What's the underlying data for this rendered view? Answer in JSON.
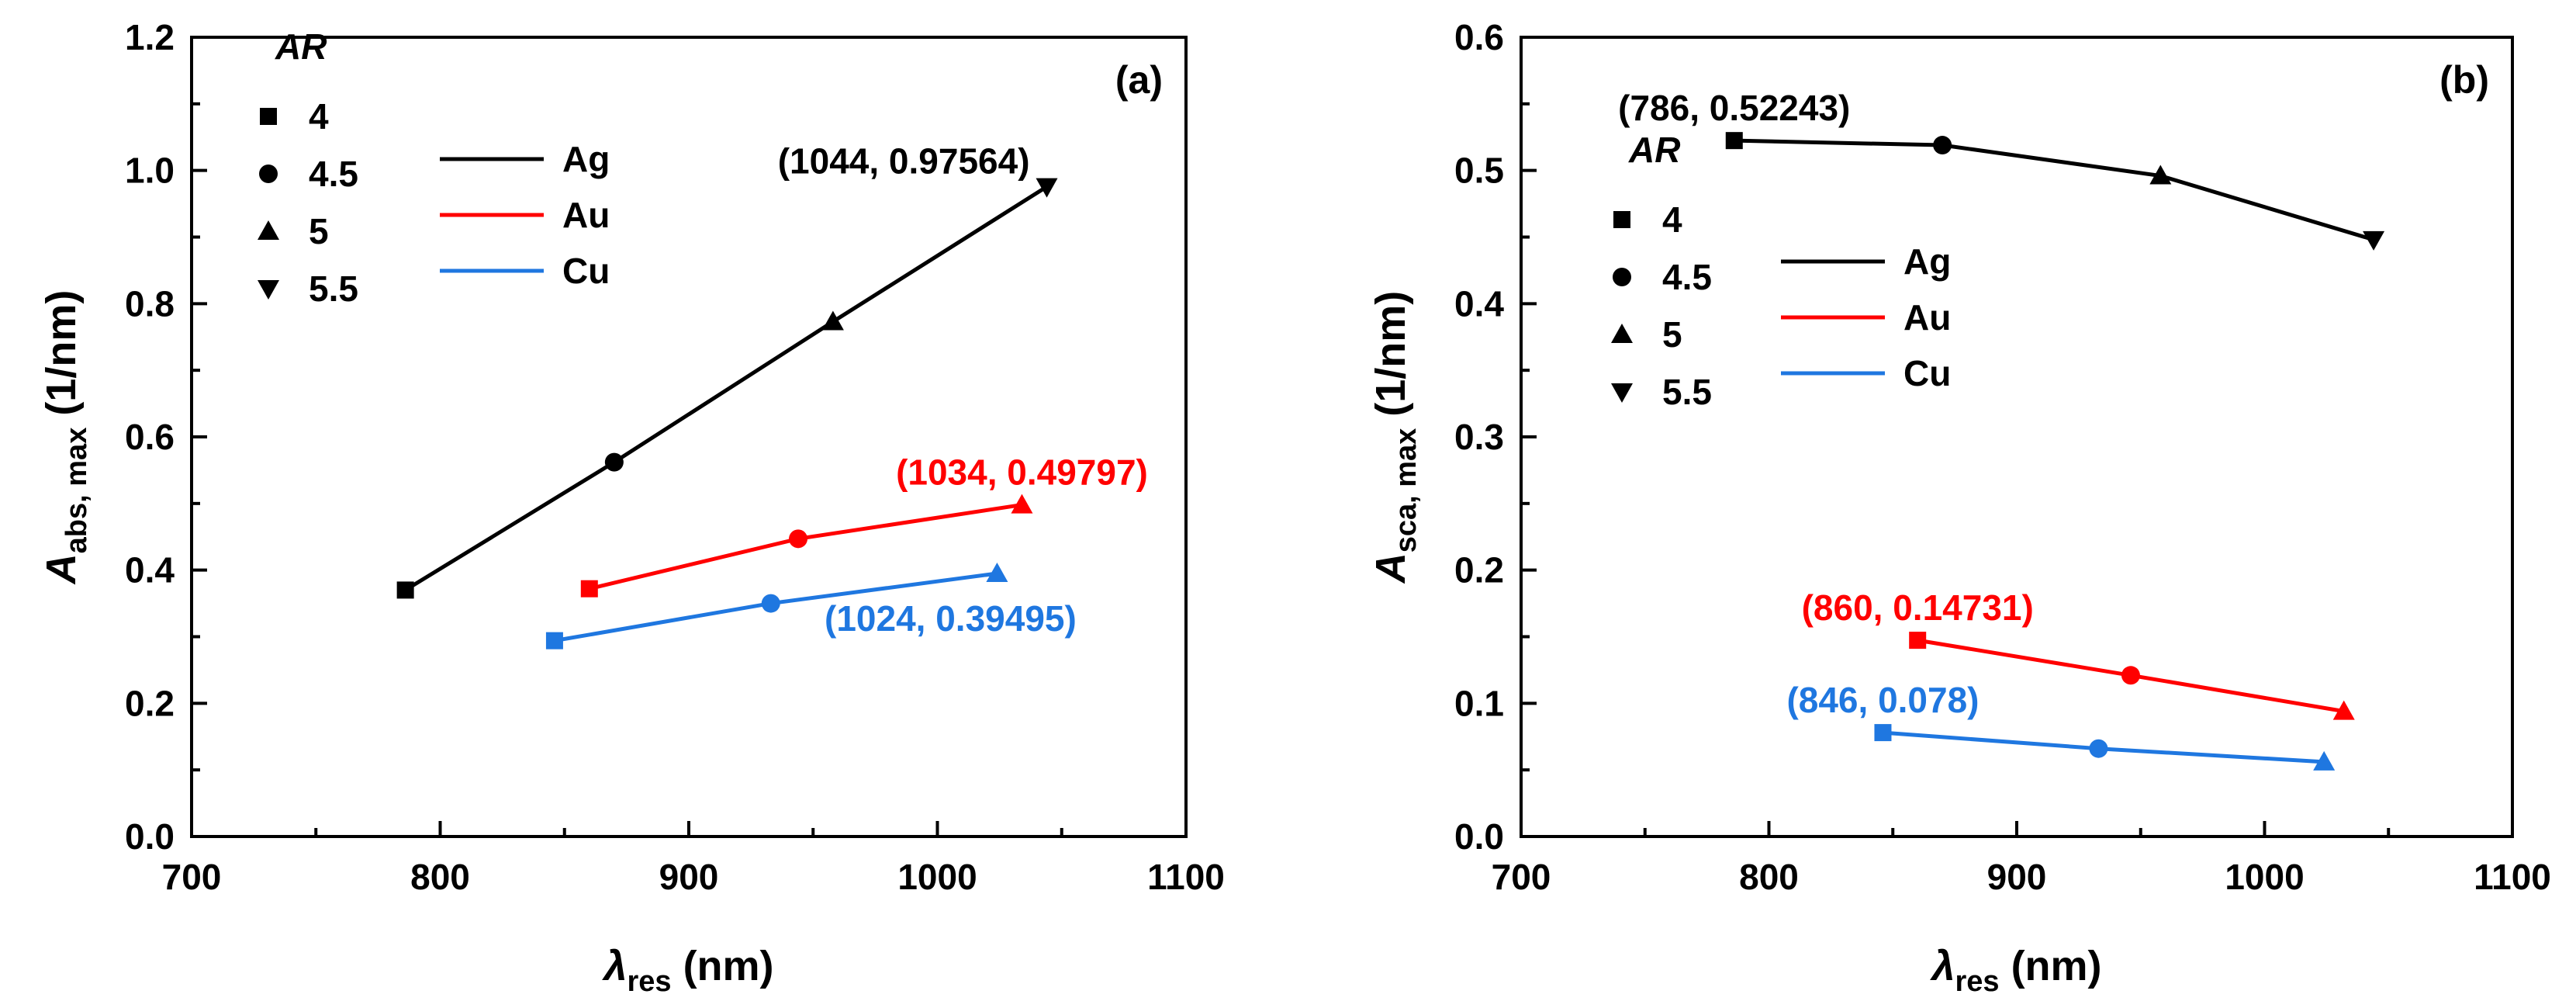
{
  "figure": {
    "marker_legend_title": "AR",
    "marker_legend": [
      {
        "label": "4",
        "marker": "square"
      },
      {
        "label": "4.5",
        "marker": "circle"
      },
      {
        "label": "5",
        "marker": "triangle-up"
      },
      {
        "label": "5.5",
        "marker": "triangle-down"
      }
    ],
    "metal_legend": [
      {
        "label": "Ag",
        "color": "#000000"
      },
      {
        "label": "Au",
        "color": "#ff0000"
      },
      {
        "label": "Cu",
        "color": "#1f77e0"
      }
    ]
  },
  "chart_data": [
    {
      "type": "line",
      "panel_label": "(a)",
      "ylabel": {
        "symbol": "A",
        "subscript": "abs, max",
        "unit": "(1/nm)"
      },
      "xlabel": {
        "symbol": "λ",
        "subscript": "res",
        "unit": "(nm)"
      },
      "xlim": [
        700,
        1100
      ],
      "ylim": [
        0,
        1.2
      ],
      "xticks": [
        700,
        800,
        900,
        1000,
        1100
      ],
      "xtick_labels": [
        "700",
        "800",
        "900",
        "1000",
        "1100"
      ],
      "yticks": [
        0,
        0.2,
        0.4,
        0.6,
        0.8,
        1.0,
        1.2
      ],
      "ytick_labels": [
        "0.0",
        "0.2",
        "0.4",
        "0.6",
        "0.8",
        "1.0",
        "1.2"
      ],
      "series": [
        {
          "name": "Ag",
          "color": "#000000",
          "points": [
            {
              "x": 786,
              "y": 0.37,
              "marker": "square"
            },
            {
              "x": 870,
              "y": 0.562,
              "marker": "circle"
            },
            {
              "x": 958,
              "y": 0.773,
              "marker": "triangle-up"
            },
            {
              "x": 1044,
              "y": 0.97564,
              "marker": "triangle-down"
            }
          ]
        },
        {
          "name": "Au",
          "color": "#ff0000",
          "points": [
            {
              "x": 860,
              "y": 0.372,
              "marker": "square"
            },
            {
              "x": 944,
              "y": 0.447,
              "marker": "circle"
            },
            {
              "x": 1034,
              "y": 0.49797,
              "marker": "triangle-up"
            }
          ]
        },
        {
          "name": "Cu",
          "color": "#1f77e0",
          "points": [
            {
              "x": 846,
              "y": 0.294,
              "marker": "square"
            },
            {
              "x": 933,
              "y": 0.35,
              "marker": "circle"
            },
            {
              "x": 1024,
              "y": 0.39495,
              "marker": "triangle-up"
            }
          ]
        }
      ],
      "annotations": [
        {
          "text": "(1044, 0.97564)",
          "color": "#000000",
          "x": 1044,
          "y": 0.97564,
          "placement": "above-left"
        },
        {
          "text": "(1034, 0.49797)",
          "color": "#ff0000",
          "x": 1034,
          "y": 0.49797,
          "placement": "above"
        },
        {
          "text": "(1024, 0.39495)",
          "color": "#1f77e0",
          "x": 1024,
          "y": 0.39495,
          "placement": "below"
        }
      ]
    },
    {
      "type": "line",
      "panel_label": "(b)",
      "ylabel": {
        "symbol": "A",
        "subscript": "sca, max",
        "unit": "(1/nm)"
      },
      "xlabel": {
        "symbol": "λ",
        "subscript": "res",
        "unit": "(nm)"
      },
      "xlim": [
        700,
        1100
      ],
      "ylim": [
        0,
        0.6
      ],
      "xticks": [
        700,
        800,
        900,
        1000,
        1100
      ],
      "xtick_labels": [
        "700",
        "800",
        "900",
        "1000",
        "1100"
      ],
      "yticks": [
        0,
        0.1,
        0.2,
        0.3,
        0.4,
        0.5,
        0.6
      ],
      "ytick_labels": [
        "0.0",
        "0.1",
        "0.2",
        "0.3",
        "0.4",
        "0.5",
        "0.6"
      ],
      "series": [
        {
          "name": "Ag",
          "color": "#000000",
          "points": [
            {
              "x": 786,
              "y": 0.52243,
              "marker": "square"
            },
            {
              "x": 870,
              "y": 0.519,
              "marker": "circle"
            },
            {
              "x": 958,
              "y": 0.496,
              "marker": "triangle-up"
            },
            {
              "x": 1044,
              "y": 0.448,
              "marker": "triangle-down"
            }
          ]
        },
        {
          "name": "Au",
          "color": "#ff0000",
          "points": [
            {
              "x": 860,
              "y": 0.14731,
              "marker": "square"
            },
            {
              "x": 946,
              "y": 0.121,
              "marker": "circle"
            },
            {
              "x": 1032,
              "y": 0.094,
              "marker": "triangle-up"
            }
          ]
        },
        {
          "name": "Cu",
          "color": "#1f77e0",
          "points": [
            {
              "x": 846,
              "y": 0.078,
              "marker": "square"
            },
            {
              "x": 933,
              "y": 0.066,
              "marker": "circle"
            },
            {
              "x": 1024,
              "y": 0.056,
              "marker": "triangle-up"
            }
          ]
        }
      ],
      "annotations": [
        {
          "text": "(786, 0.52243)",
          "color": "#000000",
          "x": 786,
          "y": 0.52243,
          "placement": "above"
        },
        {
          "text": "(860, 0.14731)",
          "color": "#ff0000",
          "x": 860,
          "y": 0.14731,
          "placement": "above"
        },
        {
          "text": "(846, 0.078)",
          "color": "#1f77e0",
          "x": 846,
          "y": 0.078,
          "placement": "above"
        }
      ]
    }
  ]
}
